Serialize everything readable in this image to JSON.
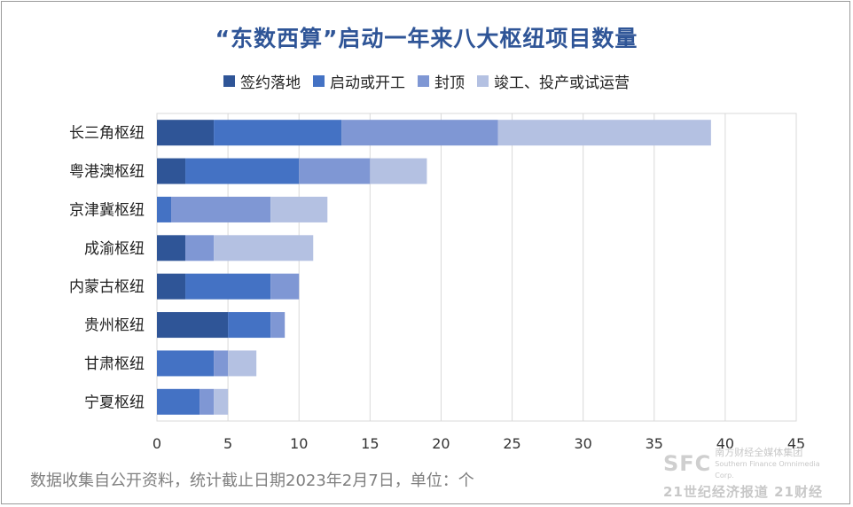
{
  "chart_data": {
    "type": "bar",
    "orientation": "horizontal",
    "stacked": true,
    "title": "“东数西算”启动一年来八大枢纽项目数量",
    "categories": [
      "长三角枢纽",
      "粤港澳枢纽",
      "京津冀枢纽",
      "成渝枢纽",
      "内蒙古枢纽",
      "贵州枢纽",
      "甘肃枢纽",
      "宁夏枢纽"
    ],
    "series": [
      {
        "name": "签约落地",
        "color": "#2f5597",
        "values": [
          4,
          2,
          0,
          2,
          2,
          5,
          0,
          0
        ]
      },
      {
        "name": "启动或开工",
        "color": "#4472c4",
        "values": [
          9,
          8,
          1,
          0,
          6,
          3,
          4,
          3
        ]
      },
      {
        "name": "封顶",
        "color": "#7f97d4",
        "values": [
          11,
          5,
          7,
          2,
          2,
          1,
          1,
          1
        ]
      },
      {
        "name": "竣工、投产或试运营",
        "color": "#b4c1e2",
        "values": [
          15,
          4,
          4,
          7,
          0,
          0,
          2,
          1
        ]
      }
    ],
    "xlim": [
      0,
      45
    ],
    "xticks": [
      0,
      5,
      10,
      15,
      20,
      25,
      30,
      35,
      40,
      45
    ],
    "grid": true,
    "legend_position": "top"
  },
  "footnote": "数据收集自公开资料，统计截止日期2023年2月7日，单位：个",
  "watermark": {
    "logo": "SFC",
    "line1": "南方财经全媒体集团",
    "line2": "Southern Finance Omnimedia Corp.",
    "line3": "21世纪经济报道  21财经"
  }
}
